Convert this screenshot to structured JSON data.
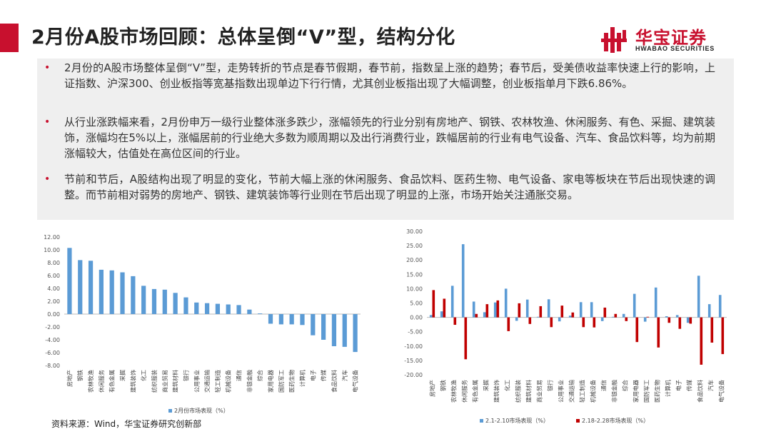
{
  "header": {
    "title": "2月份A股市场回顾：总体呈倒“V”型，结构分化",
    "logo_cn": "华宝证券",
    "logo_en": "HWABAO SECURITIES",
    "accent_color": "#c8102e"
  },
  "bullets": [
    "2月份的A股市场整体呈倒“V”型，走势转折的节点是春节假期，春节前，指数呈上涨的趋势；春节后，受美债收益率快速上行的影响，上证指数、沪深300、创业板指等宽基指数出现单边下行行情，尤其创业板指出现了大幅调整，创业板指单月下跌6.86%。",
    "从行业涨跌幅来看，2月份申万一级行业整体涨多跌少，涨幅领先的行业分别有房地产、钢铁、农林牧渔、休闲服务、有色、采掘、建筑装饰，涨幅均在5%以上，涨幅居前的行业绝大多数为顺周期以及出行消费行业，跌幅居前的行业有电气设备、汽车、食品饮料等，均为前期涨幅较大，估值处在高位区间的行业。",
    "节前和节后，A股结构出现了明显的变化，节前大幅上涨的休闲服务、食品饮料、医药生物、电气设备、家电等板块在节后出现快速的调整。而节前相对弱势的房地产、钢铁、建筑装饰等行业则在节后出现了明显的上涨，市场开始关注通胀交易。"
  ],
  "source": "资料来源：Wind，华宝证券研究创新部",
  "chart_data": [
    {
      "type": "bar",
      "categories": [
        "房地产",
        "钢铁",
        "农林牧渔",
        "休闲服务",
        "有色金属",
        "采掘",
        "建筑装饰",
        "化工",
        "纺织服装",
        "商业贸易",
        "建筑材料",
        "银行",
        "公用事业",
        "交通运输",
        "轻工制造",
        "机械设备",
        "通信",
        "非银金融",
        "综合",
        "家用电器",
        "国防军工",
        "医药生物",
        "计算机",
        "电子",
        "传媒",
        "食品饮料",
        "汽车",
        "电气设备"
      ],
      "series": [
        {
          "name": "2月份市场表现（%）",
          "color": "#5b9bd5",
          "values": [
            10.3,
            8.4,
            8.3,
            6.9,
            6.8,
            6.5,
            5.9,
            4.4,
            3.9,
            3.8,
            3.3,
            2.6,
            1.8,
            1.7,
            1.6,
            1.5,
            1.4,
            0.7,
            0.1,
            -1.5,
            -1.6,
            -1.6,
            -1.7,
            -3.3,
            -4.0,
            -5.0,
            -5.1,
            -5.9
          ]
        }
      ],
      "ylim": [
        -8,
        12
      ],
      "yticks": [
        "12.00",
        "10.00",
        "8.00",
        "6.00",
        "4.00",
        "2.00",
        "0.00",
        "-2.00",
        "-4.00",
        "-6.00",
        "-8.00"
      ],
      "legend": "bottom"
    },
    {
      "type": "bar",
      "categories": [
        "房地产",
        "钢铁",
        "农林牧渔",
        "休闲服务",
        "有色金属",
        "采掘",
        "建筑装饰",
        "化工",
        "纺织服装",
        "建筑材料",
        "商业贸易",
        "银行",
        "公用事业",
        "交通运输",
        "轻工制造",
        "机械设备",
        "通信",
        "非银金融",
        "综合",
        "家用电器",
        "国防军工",
        "医药生物",
        "计算机",
        "电子",
        "传媒",
        "食品饮料",
        "汽车",
        "电气设备"
      ],
      "series": [
        {
          "name": "2.1-2.10市场表现（%）",
          "color": "#5b9bd5",
          "values": [
            0.8,
            2.1,
            11.0,
            25.5,
            5.5,
            1.8,
            5.2,
            10.0,
            -1.2,
            6.2,
            0.2,
            6.3,
            -1.4,
            0.6,
            5.3,
            5.3,
            -1.3,
            0.2,
            1.2,
            8.2,
            -1.5,
            10.4,
            0.4,
            0.8,
            -1.9,
            14.5,
            4.6,
            7.8
          ]
        },
        {
          "name": "2.18-2.28市场表现（%）",
          "color": "#c00000",
          "values": [
            9.5,
            6.5,
            -2.6,
            -14.6,
            1.2,
            4.6,
            5.9,
            -4.8,
            4.9,
            -2.3,
            3.9,
            -3.4,
            4.1,
            1.7,
            -3.4,
            -3.5,
            3.4,
            1.2,
            -1.3,
            -8.6,
            0.2,
            -10.5,
            -1.9,
            -4.0,
            -2.2,
            -16.5,
            -8.8,
            -12.8
          ]
        }
      ],
      "ylim": [
        -20,
        30
      ],
      "yticks": [
        "30.00",
        "25.00",
        "20.00",
        "15.00",
        "10.00",
        "5.00",
        "0.00",
        "-5.00",
        "-10.00",
        "-15.00",
        "-20.00"
      ],
      "legend": "bottom"
    }
  ]
}
